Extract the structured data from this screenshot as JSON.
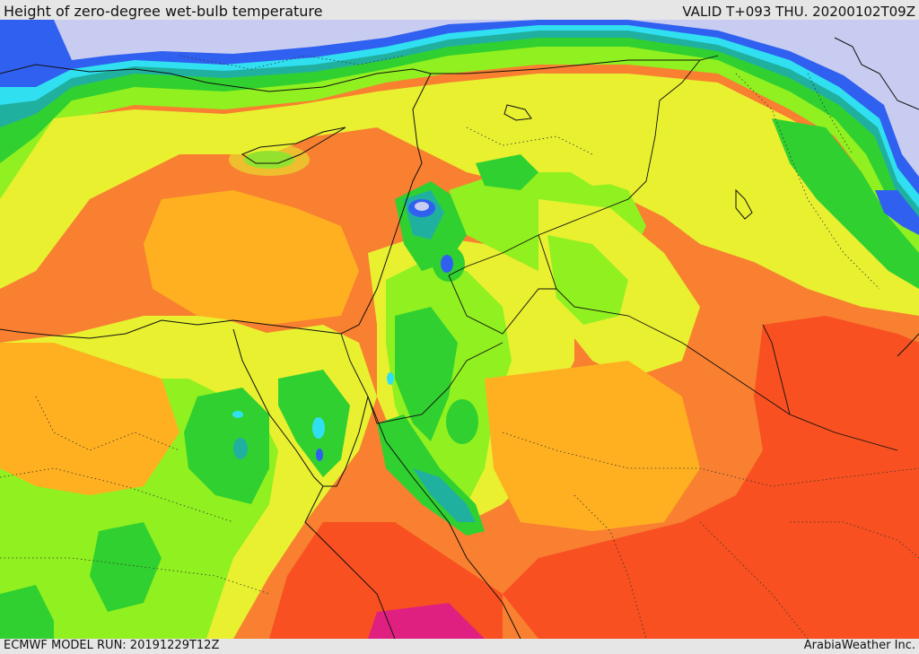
{
  "header": {
    "title": "Height of zero-degree wet-bulb temperature",
    "valid": "VALID T+093 THU. 20200102T09Z"
  },
  "footer": {
    "model_run": "ECMWF MODEL RUN: 20191229T12Z",
    "credit": "ArabiaWeather Inc."
  },
  "palette": {
    "lavender": "#c8ccf0",
    "blue": "#3060f0",
    "cyan": "#30e0f0",
    "teal": "#20b0a0",
    "green": "#30d030",
    "lime": "#90f020",
    "yellow": "#e8f030",
    "gold": "#ffb020",
    "orange": "#f88030",
    "red_orange": "#f85020",
    "magenta": "#e02080"
  }
}
